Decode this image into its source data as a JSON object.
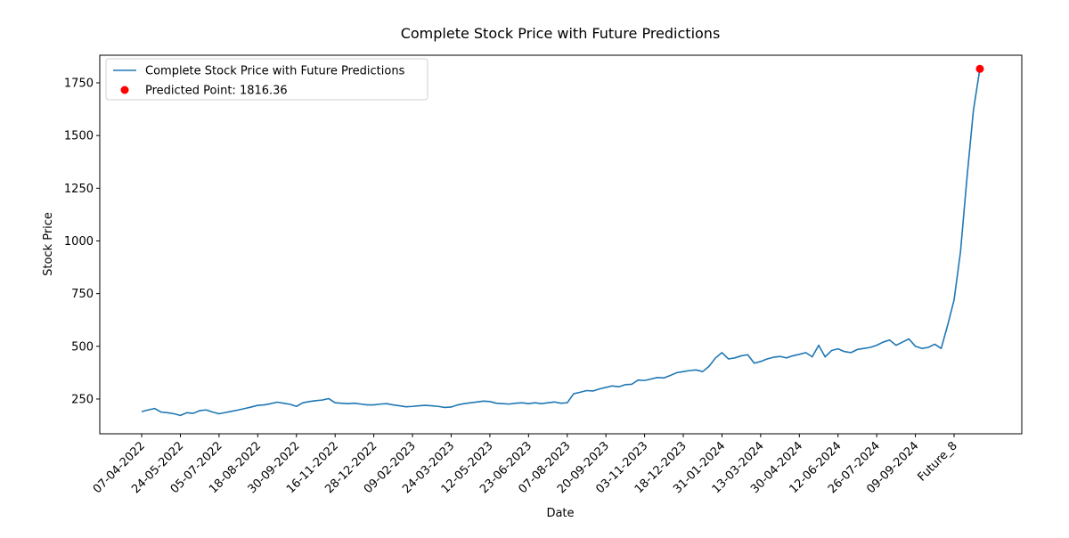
{
  "chart_data": {
    "type": "line",
    "title": "Complete Stock Price with Future Predictions",
    "x_label": "Date",
    "y_label": "Stock Price",
    "categories": [
      "07-04-2022",
      null,
      null,
      null,
      null,
      null,
      "24-05-2022",
      null,
      null,
      null,
      null,
      null,
      "05-07-2022",
      null,
      null,
      null,
      null,
      null,
      "18-08-2022",
      null,
      null,
      null,
      null,
      null,
      "30-09-2022",
      null,
      null,
      null,
      null,
      null,
      "16-11-2022",
      null,
      null,
      null,
      null,
      null,
      "28-12-2022",
      null,
      null,
      null,
      null,
      null,
      "09-02-2023",
      null,
      null,
      null,
      null,
      null,
      "24-03-2023",
      null,
      null,
      null,
      null,
      null,
      "12-05-2023",
      null,
      null,
      null,
      null,
      null,
      "23-06-2023",
      null,
      null,
      null,
      null,
      null,
      "07-08-2023",
      null,
      null,
      null,
      null,
      null,
      "20-09-2023",
      null,
      null,
      null,
      null,
      null,
      "03-11-2023",
      null,
      null,
      null,
      null,
      null,
      "18-12-2023",
      null,
      null,
      null,
      null,
      null,
      "31-01-2024",
      null,
      null,
      null,
      null,
      null,
      "13-03-2024",
      null,
      null,
      null,
      null,
      null,
      "30-04-2024",
      null,
      null,
      null,
      null,
      null,
      "12-06-2024",
      null,
      null,
      null,
      null,
      null,
      "26-07-2024",
      null,
      null,
      null,
      null,
      null,
      "09-09-2024",
      null,
      null,
      null,
      null,
      null,
      "Future_8",
      null,
      null,
      null,
      null
    ],
    "series": [
      {
        "name": "Complete Stock Price with Future Predictions",
        "color": "#1f77b4",
        "kind": "line",
        "values": [
          190,
          198,
          205,
          188,
          185,
          180,
          172,
          185,
          182,
          195,
          198,
          188,
          180,
          186,
          192,
          198,
          205,
          212,
          220,
          222,
          228,
          235,
          230,
          225,
          215,
          232,
          238,
          242,
          245,
          252,
          232,
          230,
          228,
          230,
          226,
          222,
          222,
          226,
          228,
          222,
          218,
          213,
          215,
          218,
          220,
          218,
          215,
          210,
          212,
          222,
          228,
          232,
          236,
          240,
          238,
          230,
          228,
          226,
          230,
          232,
          228,
          232,
          228,
          232,
          236,
          230,
          232,
          275,
          282,
          290,
          288,
          298,
          305,
          312,
          308,
          318,
          320,
          340,
          338,
          345,
          352,
          350,
          362,
          375,
          380,
          385,
          388,
          380,
          405,
          445,
          470,
          440,
          445,
          455,
          460,
          420,
          428,
          440,
          448,
          452,
          445,
          455,
          462,
          470,
          450,
          505,
          450,
          480,
          488,
          475,
          470,
          485,
          490,
          495,
          505,
          520,
          530,
          505,
          520,
          535,
          500,
          490,
          495,
          510,
          490,
          600,
          720,
          950,
          1300,
          1620,
          1816.36
        ]
      },
      {
        "name": "Predicted Point: 1816.36",
        "color": "#ff0000",
        "kind": "scatter",
        "values": [
          null,
          null,
          null,
          null,
          null,
          null,
          null,
          null,
          null,
          null,
          null,
          null,
          null,
          null,
          null,
          null,
          null,
          null,
          null,
          null,
          null,
          null,
          null,
          null,
          null,
          null,
          null,
          null,
          null,
          null,
          null,
          null,
          null,
          null,
          null,
          null,
          null,
          null,
          null,
          null,
          null,
          null,
          null,
          null,
          null,
          null,
          null,
          null,
          null,
          null,
          null,
          null,
          null,
          null,
          null,
          null,
          null,
          null,
          null,
          null,
          null,
          null,
          null,
          null,
          null,
          null,
          null,
          null,
          null,
          null,
          null,
          null,
          null,
          null,
          null,
          null,
          null,
          null,
          null,
          null,
          null,
          null,
          null,
          null,
          null,
          null,
          null,
          null,
          null,
          null,
          null,
          null,
          null,
          null,
          null,
          null,
          null,
          null,
          null,
          null,
          null,
          null,
          null,
          null,
          null,
          null,
          null,
          null,
          null,
          null,
          null,
          null,
          null,
          null,
          null,
          null,
          null,
          null,
          null,
          null,
          null,
          null,
          null,
          null,
          null,
          null,
          null,
          null,
          null,
          null,
          1816.36
        ]
      }
    ],
    "ylim": [
      85,
      1881
    ],
    "yticks": [
      250,
      500,
      750,
      1000,
      1250,
      1500,
      1750
    ],
    "grid": false,
    "legend": "upper left"
  }
}
